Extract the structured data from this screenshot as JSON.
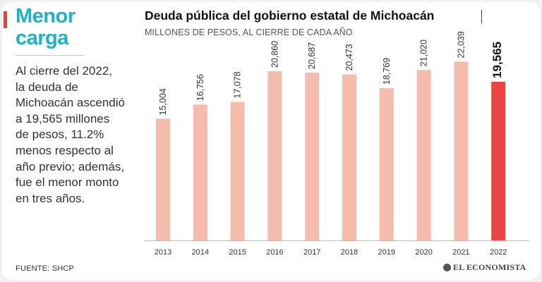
{
  "headline": {
    "line1": "Menor",
    "line2": "carga"
  },
  "summary": [
    "Al cierre del 2022,",
    "la deuda de",
    "Michoacán ascendió",
    "a 19,565 millones",
    "de pesos, 11.2%",
    "menos respecto al",
    "año previo; además,",
    "fue el menor monto",
    "en tres años."
  ],
  "source": "FUENTE: SHCP",
  "publisher": "EL ECONOMISTA",
  "colors": {
    "bar": "#f5bcae",
    "highlight": "#ea4445",
    "headline": "#1bb3c6"
  },
  "chart_data": {
    "type": "bar",
    "title": "Deuda pública del gobierno estatal de Michoacán",
    "subtitle": "MILLONES DE PESOS, AL CIERRE DE CADA AÑO",
    "xlabel": "",
    "ylabel": "",
    "ylim": [
      0,
      26000
    ],
    "grid": false,
    "categories": [
      "2013",
      "2014",
      "2015",
      "2016",
      "2017",
      "2018",
      "2019",
      "2020",
      "2021",
      "2022"
    ],
    "values": [
      15004,
      16756,
      17078,
      20860,
      20687,
      20473,
      18769,
      21020,
      22039,
      19565
    ],
    "value_labels": [
      "15,004",
      "16,756",
      "17,078",
      "20,860",
      "20,687",
      "20,473",
      "18,769",
      "21,020",
      "22,039",
      "19,565"
    ],
    "highlight_category": "2022"
  }
}
